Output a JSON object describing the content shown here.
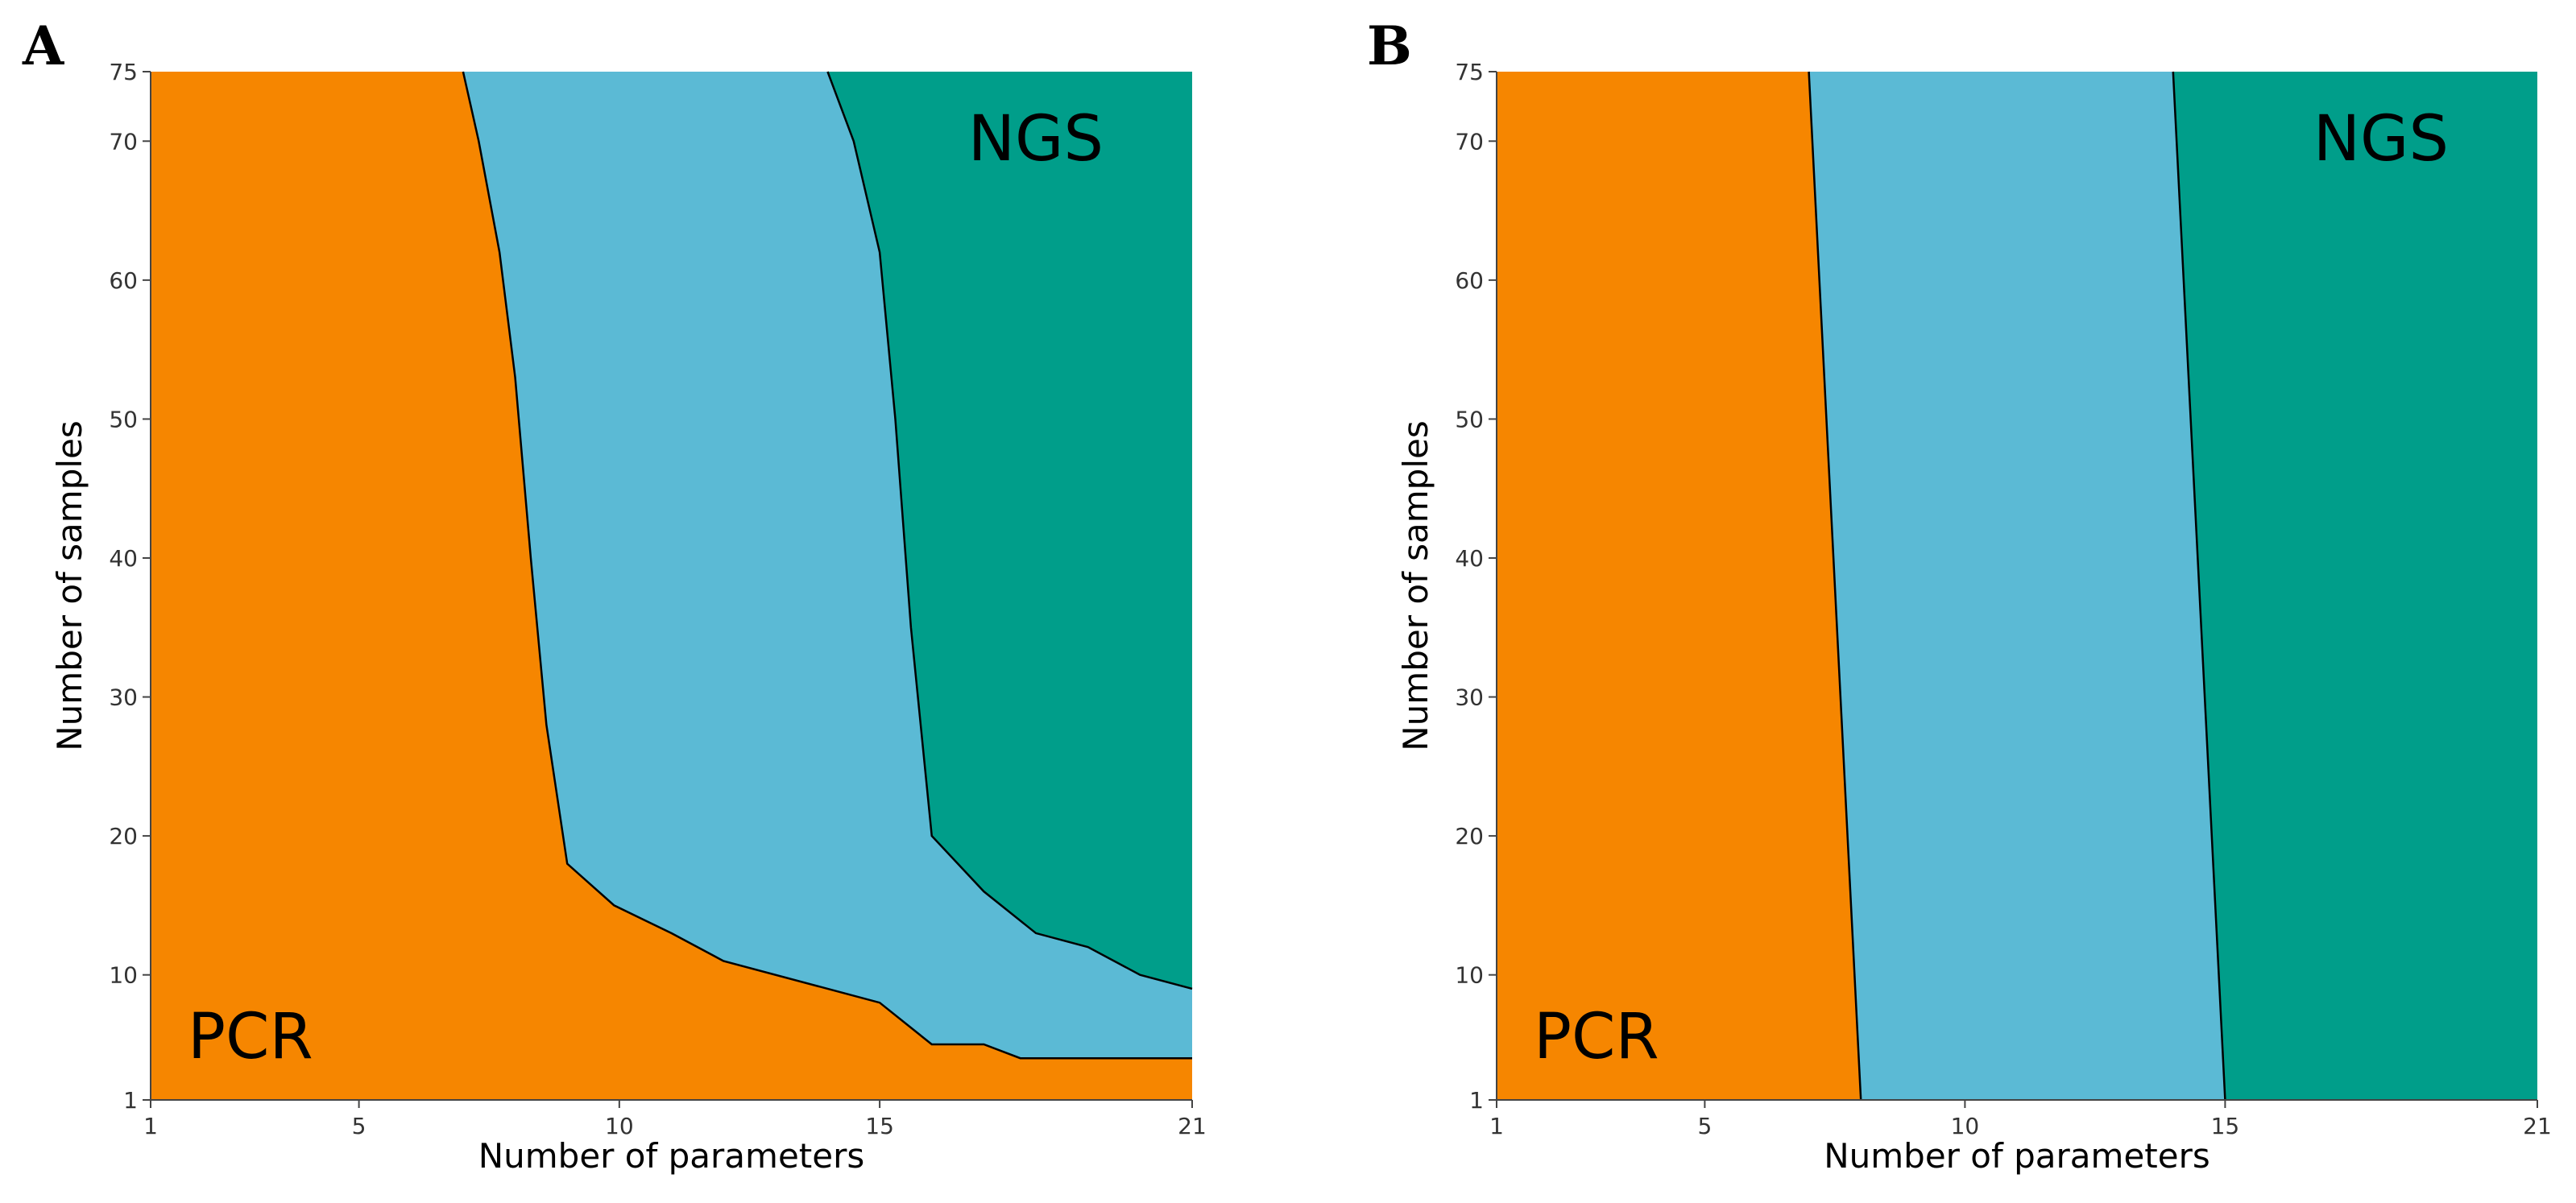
{
  "colors": {
    "pcr": "#F68600",
    "middle": "#5BBAD5",
    "ngs": "#009E8A"
  },
  "chart_data": [
    {
      "type": "area",
      "panel_label": "A",
      "xlabel": "Number of parameters",
      "ylabel": "Number of samples",
      "xlim": [
        1,
        21
      ],
      "ylim": [
        1,
        75
      ],
      "xticks": [
        1,
        5,
        10,
        15,
        21
      ],
      "yticks": [
        1,
        10,
        20,
        30,
        40,
        50,
        60,
        70,
        75
      ],
      "region_labels": {
        "lower_left": "PCR",
        "upper_right": "NGS"
      },
      "boundaries": [
        {
          "name": "PCR / middle boundary",
          "points": [
            [
              7,
              75
            ],
            [
              7.3,
              70
            ],
            [
              7.7,
              62
            ],
            [
              8,
              53
            ],
            [
              8.3,
              40
            ],
            [
              8.6,
              28
            ],
            [
              9,
              18
            ],
            [
              9.9,
              15
            ],
            [
              11,
              13
            ],
            [
              12,
              11
            ],
            [
              14,
              9
            ],
            [
              15,
              8
            ],
            [
              16,
              5
            ],
            [
              17,
              5
            ],
            [
              17.7,
              4
            ],
            [
              21,
              4
            ]
          ]
        },
        {
          "name": "middle / NGS boundary",
          "points": [
            [
              14,
              75
            ],
            [
              14.5,
              70
            ],
            [
              15,
              62
            ],
            [
              15.3,
              50
            ],
            [
              15.6,
              35
            ],
            [
              16,
              20
            ],
            [
              17,
              16
            ],
            [
              18,
              13
            ],
            [
              19,
              12
            ],
            [
              20,
              10
            ],
            [
              21,
              9
            ]
          ]
        }
      ]
    },
    {
      "type": "area",
      "panel_label": "B",
      "xlabel": "Number of parameters",
      "ylabel": "Number of samples",
      "xlim": [
        1,
        21
      ],
      "ylim": [
        1,
        75
      ],
      "xticks": [
        1,
        5,
        10,
        15,
        21
      ],
      "yticks": [
        1,
        10,
        20,
        30,
        40,
        50,
        60,
        70,
        75
      ],
      "region_labels": {
        "lower_left": "PCR",
        "upper_right": "NGS"
      },
      "boundaries": [
        {
          "name": "PCR / middle boundary",
          "points": [
            [
              7,
              75
            ],
            [
              8,
              1
            ]
          ]
        },
        {
          "name": "middle / NGS boundary",
          "points": [
            [
              14,
              75
            ],
            [
              15,
              1
            ]
          ]
        }
      ]
    }
  ]
}
